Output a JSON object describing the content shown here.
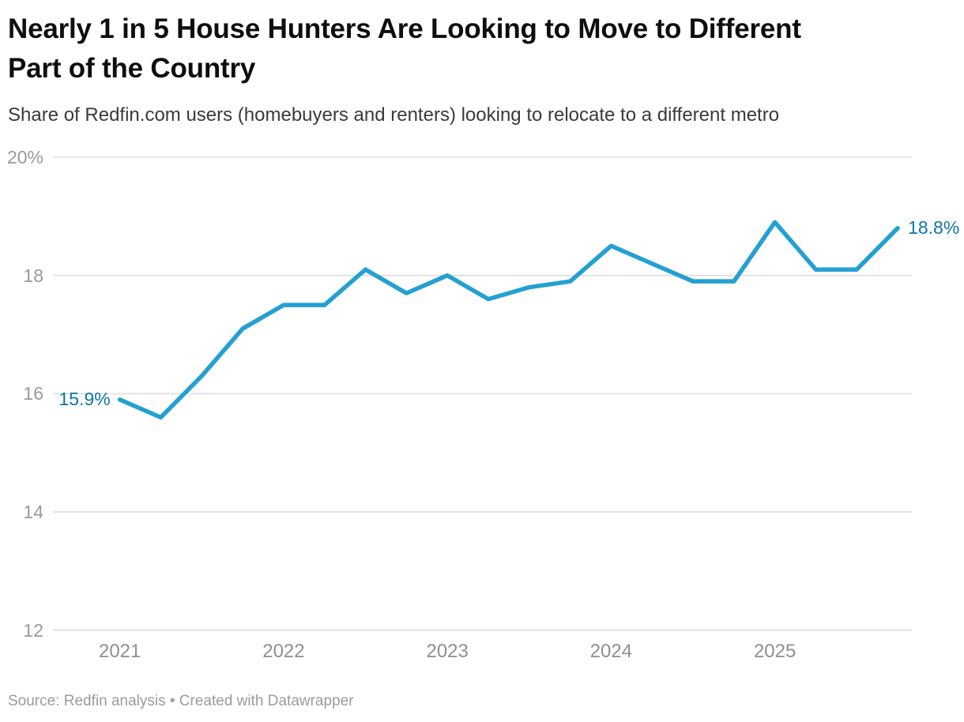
{
  "header": {
    "title": "Nearly 1 in 5 House Hunters Are Looking to Move to Different Part of the Country",
    "subtitle": "Share of Redfin.com users (homebuyers and renters) looking to relocate to a different metro"
  },
  "footer": {
    "source": "Source: Redfin analysis • Created with Datawrapper"
  },
  "chart_data": {
    "type": "line",
    "title": "Nearly 1 in 5 House Hunters Are Looking to Move to Different Part of the Country",
    "subtitle": "Share of Redfin.com users (homebuyers and renters) looking to relocate to a different metro",
    "x": [
      "2021 Q1",
      "2021 Q2",
      "2021 Q3",
      "2021 Q4",
      "2022 Q1",
      "2022 Q2",
      "2022 Q3",
      "2022 Q4",
      "2023 Q1",
      "2023 Q2",
      "2023 Q3",
      "2023 Q4",
      "2024 Q1",
      "2024 Q2",
      "2024 Q3",
      "2024 Q4",
      "2025 Q1",
      "2025 Q2",
      "2025 Q3",
      "2025 Q4"
    ],
    "values": [
      15.9,
      15.6,
      16.3,
      17.1,
      17.5,
      17.5,
      18.1,
      17.7,
      18.0,
      17.6,
      17.8,
      17.9,
      18.5,
      18.2,
      17.9,
      17.9,
      18.9,
      18.1,
      18.1,
      18.8
    ],
    "ylim": [
      12,
      20
    ],
    "yticks": [
      20,
      18,
      16,
      14,
      12
    ],
    "ytick_labels": [
      "20%",
      "18",
      "16",
      "14",
      "12"
    ],
    "xticks_years": [
      "2021",
      "2022",
      "2023",
      "2024",
      "2025"
    ],
    "grid": "horizontal",
    "legend": "none",
    "line_color": "#24a0d2",
    "value_label_color": "#0e76a5",
    "grid_color": "#dedede",
    "first_point_label": "15.9%",
    "last_point_label": "18.8%"
  }
}
